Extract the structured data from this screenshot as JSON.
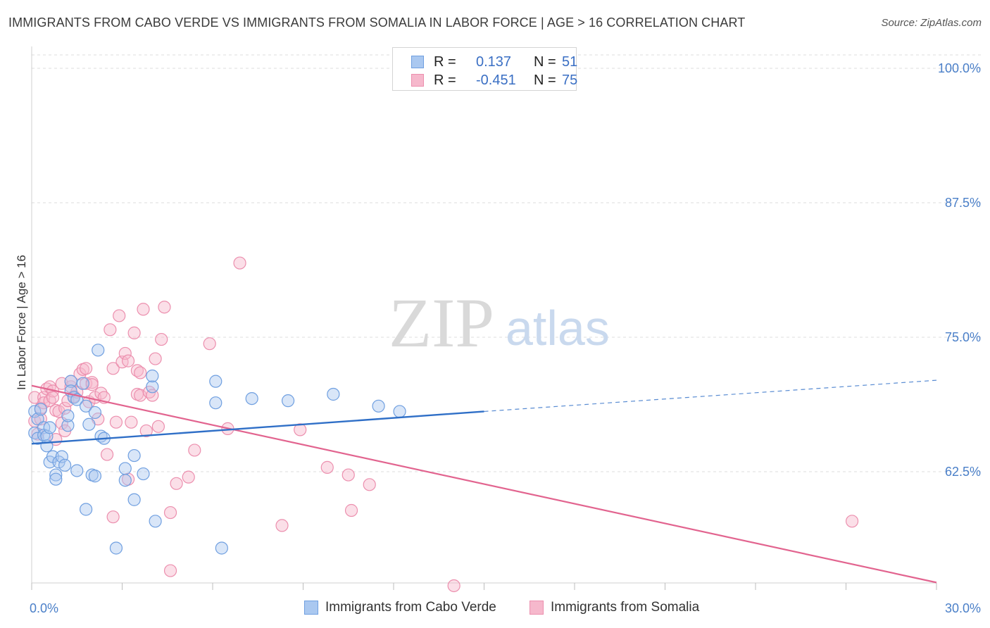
{
  "title": "IMMIGRANTS FROM CABO VERDE VS IMMIGRANTS FROM SOMALIA IN LABOR FORCE | AGE > 16 CORRELATION CHART",
  "source": "Source: ZipAtlas.com",
  "watermark": {
    "zip": "ZIP",
    "atlas": "atlas"
  },
  "legend": {
    "rows": [
      {
        "r_label": "R =",
        "r_value": "0.137",
        "n_label": "N =",
        "n_value": "51"
      },
      {
        "r_label": "R =",
        "r_value": "-0.451",
        "n_label": "N =",
        "n_value": "75"
      }
    ]
  },
  "bottom_legend": {
    "a": "Immigrants from Cabo Verde",
    "b": "Immigrants from Somalia"
  },
  "colors": {
    "blue_fill": "#aac8f0",
    "blue_stroke": "#6f9fe0",
    "blue_line": "#2f6fc7",
    "pink_fill": "#f6b8cc",
    "pink_stroke": "#ec8fae",
    "pink_line": "#e2648f",
    "tick_text": "#4a7fc8",
    "grid": "#dcdcdc"
  },
  "chart_data": {
    "type": "scatter",
    "title": "IMMIGRANTS FROM CABO VERDE VS IMMIGRANTS FROM SOMALIA IN LABOR FORCE | AGE > 16 CORRELATION CHART",
    "xlabel": "",
    "ylabel": "In Labor Force | Age > 16",
    "xlim": [
      0,
      30
    ],
    "ylim": [
      51.5,
      101.2
    ],
    "x_tick_labels": [
      "0.0%",
      "30.0%"
    ],
    "y_ticks": [
      {
        "value": 100.0,
        "label": "100.0%"
      },
      {
        "value": 87.5,
        "label": "87.5%"
      },
      {
        "value": 75.0,
        "label": "75.0%"
      },
      {
        "value": 62.5,
        "label": "62.5%"
      }
    ],
    "grid": "horizontal dashed",
    "series": [
      {
        "name": "Immigrants from Cabo Verde",
        "R": 0.137,
        "N": 51,
        "trend": {
          "x0": 0,
          "y0": 65.1,
          "x1": 15,
          "y1": 68.1,
          "dash_to_x": 30,
          "dash_to_y": 71.0
        },
        "points": [
          [
            0.1,
            68.1
          ],
          [
            0.1,
            66.1
          ],
          [
            0.2,
            65.6
          ],
          [
            0.2,
            67.4
          ],
          [
            0.3,
            68.3
          ],
          [
            0.4,
            66.6
          ],
          [
            0.4,
            65.9
          ],
          [
            0.5,
            65.8
          ],
          [
            0.6,
            66.6
          ],
          [
            0.5,
            64.9
          ],
          [
            0.6,
            63.4
          ],
          [
            0.7,
            63.9
          ],
          [
            0.8,
            62.2
          ],
          [
            0.9,
            63.4
          ],
          [
            1.0,
            63.9
          ],
          [
            1.1,
            63.1
          ],
          [
            1.2,
            66.8
          ],
          [
            1.2,
            67.7
          ],
          [
            1.3,
            70.9
          ],
          [
            1.3,
            70.0
          ],
          [
            1.4,
            69.4
          ],
          [
            1.5,
            69.2
          ],
          [
            1.5,
            62.6
          ],
          [
            1.7,
            70.7
          ],
          [
            1.8,
            68.6
          ],
          [
            1.8,
            59.0
          ],
          [
            1.9,
            66.9
          ],
          [
            2.0,
            62.2
          ],
          [
            2.1,
            62.1
          ],
          [
            2.1,
            68.0
          ],
          [
            2.2,
            73.8
          ],
          [
            2.3,
            65.8
          ],
          [
            2.4,
            65.6
          ],
          [
            2.8,
            55.4
          ],
          [
            3.1,
            62.8
          ],
          [
            3.1,
            61.7
          ],
          [
            3.4,
            64.0
          ],
          [
            3.4,
            59.9
          ],
          [
            3.7,
            62.3
          ],
          [
            4.0,
            70.4
          ],
          [
            4.0,
            71.4
          ],
          [
            4.1,
            57.9
          ],
          [
            6.1,
            70.9
          ],
          [
            6.1,
            68.9
          ],
          [
            6.3,
            55.4
          ],
          [
            7.3,
            69.3
          ],
          [
            8.5,
            69.1
          ],
          [
            10.0,
            69.7
          ],
          [
            11.5,
            68.6
          ],
          [
            12.2,
            68.1
          ],
          [
            0.8,
            61.8
          ]
        ]
      },
      {
        "name": "Immigrants from Somalia",
        "R": -0.451,
        "N": 75,
        "trend": {
          "x0": 0,
          "y0": 70.5,
          "x1": 30,
          "y1": 52.2
        },
        "points": [
          [
            0.1,
            69.4
          ],
          [
            0.1,
            67.2
          ],
          [
            0.2,
            66.0
          ],
          [
            0.3,
            68.4
          ],
          [
            0.3,
            67.4
          ],
          [
            0.4,
            69.4
          ],
          [
            0.4,
            68.9
          ],
          [
            0.5,
            70.2
          ],
          [
            0.6,
            69.1
          ],
          [
            0.6,
            70.4
          ],
          [
            0.7,
            70.0
          ],
          [
            0.7,
            69.4
          ],
          [
            0.8,
            68.2
          ],
          [
            0.8,
            65.5
          ],
          [
            0.9,
            68.1
          ],
          [
            1.0,
            70.7
          ],
          [
            1.0,
            67.0
          ],
          [
            1.1,
            66.3
          ],
          [
            1.1,
            68.4
          ],
          [
            1.2,
            69.1
          ],
          [
            1.3,
            70.4
          ],
          [
            1.3,
            70.9
          ],
          [
            1.4,
            69.5
          ],
          [
            1.5,
            69.9
          ],
          [
            1.6,
            71.6
          ],
          [
            1.7,
            72.0
          ],
          [
            1.8,
            72.1
          ],
          [
            1.8,
            70.7
          ],
          [
            1.9,
            69.0
          ],
          [
            2.0,
            70.8
          ],
          [
            2.0,
            70.6
          ],
          [
            2.1,
            69.4
          ],
          [
            2.2,
            67.4
          ],
          [
            2.3,
            69.8
          ],
          [
            2.4,
            69.4
          ],
          [
            2.5,
            64.1
          ],
          [
            2.6,
            75.7
          ],
          [
            2.7,
            72.1
          ],
          [
            2.7,
            58.3
          ],
          [
            2.8,
            67.1
          ],
          [
            2.9,
            77.0
          ],
          [
            3.0,
            72.7
          ],
          [
            3.1,
            73.5
          ],
          [
            3.2,
            72.8
          ],
          [
            3.2,
            61.8
          ],
          [
            3.3,
            67.1
          ],
          [
            3.4,
            75.4
          ],
          [
            3.5,
            69.7
          ],
          [
            3.5,
            71.9
          ],
          [
            3.6,
            69.6
          ],
          [
            3.6,
            71.7
          ],
          [
            3.7,
            77.6
          ],
          [
            3.8,
            66.3
          ],
          [
            3.9,
            69.9
          ],
          [
            4.0,
            69.6
          ],
          [
            4.1,
            73.0
          ],
          [
            4.2,
            66.7
          ],
          [
            4.3,
            74.8
          ],
          [
            4.4,
            77.8
          ],
          [
            4.6,
            58.7
          ],
          [
            4.6,
            53.3
          ],
          [
            4.8,
            61.4
          ],
          [
            5.2,
            62.0
          ],
          [
            5.4,
            64.5
          ],
          [
            5.9,
            74.4
          ],
          [
            6.5,
            66.5
          ],
          [
            6.9,
            81.9
          ],
          [
            8.3,
            57.5
          ],
          [
            8.9,
            66.4
          ],
          [
            9.8,
            62.9
          ],
          [
            10.5,
            62.2
          ],
          [
            10.6,
            58.9
          ],
          [
            11.2,
            61.3
          ],
          [
            14.0,
            51.9
          ],
          [
            27.2,
            57.9
          ]
        ]
      }
    ]
  }
}
